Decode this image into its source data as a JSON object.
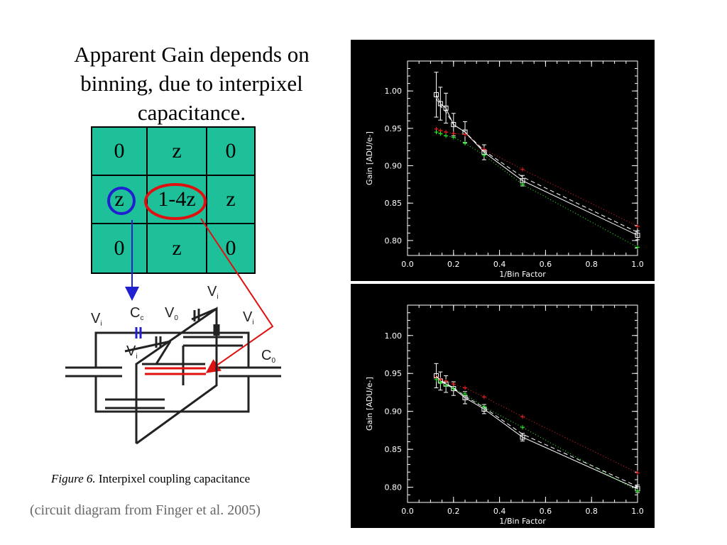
{
  "title": "Apparent Gain depends on binning, due to interpixel capacitance.",
  "grid": [
    "0",
    "z",
    "0",
    "z",
    "1-4z",
    "z",
    "0",
    "z",
    "0"
  ],
  "circuit_labels": {
    "vi": "V",
    "vi_sub": "i",
    "cc": "C",
    "cc_sub": "c",
    "v0": "V",
    "v0_sub": "0",
    "c0": "C",
    "c0_sub": "0"
  },
  "figure_caption": {
    "prefix": "Figure 6.",
    "text": " Interpixel coupling capacitance"
  },
  "credit": "(circuit diagram from Finger et al. 2005)",
  "colors": {
    "grid_fill": "#1ec09a",
    "blue": "#2020d0",
    "red": "#e01010",
    "chart_bg": "#000000"
  },
  "chart_data": [
    {
      "type": "line",
      "xlabel": "1/Bin Factor",
      "ylabel": "Gain [ADU/e-]",
      "xlim": [
        0.0,
        1.0
      ],
      "ylim": [
        0.78,
        1.04
      ],
      "xticks": [
        "0.0",
        "0.2",
        "0.4",
        "0.6",
        "0.8",
        "1.0"
      ],
      "yticks": [
        "0.80",
        "0.85",
        "0.90",
        "0.95",
        "1.00"
      ],
      "x": [
        0.125,
        0.143,
        0.167,
        0.2,
        0.25,
        0.333,
        0.5,
        1.0
      ],
      "series": [
        {
          "values": [
            0.995,
            0.983,
            0.977,
            0.955,
            0.945,
            0.918,
            0.88,
            0.807
          ],
          "err": [
            0.03,
            0.022,
            0.02,
            0.015,
            0.014,
            0.01,
            0.007,
            0.006
          ],
          "color": "#ffffff",
          "style": "solid",
          "marker": "square"
        },
        {
          "values": [
            0.949,
            0.947,
            0.945,
            0.943,
            0.942,
            0.922,
            0.895,
            0.819
          ],
          "color": "#ff2020",
          "style": "dotted",
          "marker": "plus"
        },
        {
          "values": [
            0.945,
            0.943,
            0.94,
            0.938,
            0.93,
            0.914,
            0.875,
            0.791
          ],
          "color": "#20ff20",
          "style": "dotted",
          "marker": "plus"
        },
        {
          "values": [
            0.99,
            0.98,
            0.972,
            0.955,
            0.945,
            0.92,
            0.885,
            0.811
          ],
          "color": "#ffffff",
          "style": "dashed",
          "marker": "none"
        }
      ]
    },
    {
      "type": "line",
      "xlabel": "1/Bin Factor",
      "ylabel": "Gain [ADU/e-]",
      "xlim": [
        0.0,
        1.0
      ],
      "ylim": [
        0.78,
        1.04
      ],
      "xticks": [
        "0.0",
        "0.2",
        "0.4",
        "0.6",
        "0.8",
        "1.0"
      ],
      "yticks": [
        "0.80",
        "0.85",
        "0.90",
        "0.95",
        "1.00"
      ],
      "x": [
        0.125,
        0.143,
        0.167,
        0.2,
        0.25,
        0.333,
        0.5,
        1.0
      ],
      "series": [
        {
          "values": [
            0.947,
            0.94,
            0.936,
            0.93,
            0.918,
            0.903,
            0.866,
            0.798
          ],
          "err": [
            0.016,
            0.012,
            0.011,
            0.009,
            0.008,
            0.006,
            0.005,
            0.005
          ],
          "color": "#ffffff",
          "style": "solid",
          "marker": "square"
        },
        {
          "values": [
            0.945,
            0.942,
            0.94,
            0.936,
            0.931,
            0.919,
            0.893,
            0.819
          ],
          "color": "#ff2020",
          "style": "dotted",
          "marker": "plus"
        },
        {
          "values": [
            0.942,
            0.938,
            0.934,
            0.93,
            0.923,
            0.906,
            0.879,
            0.795
          ],
          "color": "#20ff20",
          "style": "dotted",
          "marker": "plus"
        },
        {
          "values": [
            0.946,
            0.941,
            0.937,
            0.931,
            0.92,
            0.905,
            0.87,
            0.801
          ],
          "color": "#ffffff",
          "style": "dashed",
          "marker": "none"
        }
      ]
    }
  ]
}
